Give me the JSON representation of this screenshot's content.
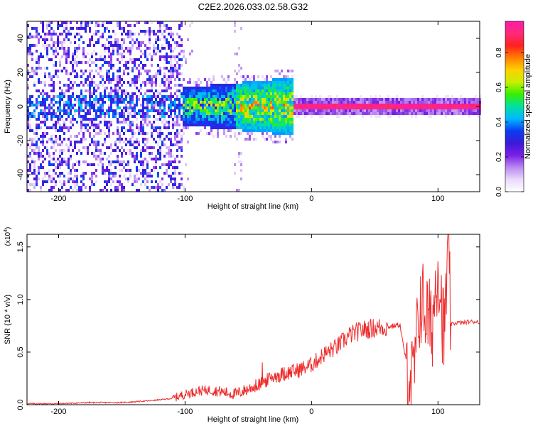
{
  "title": "C2E2.2026.033.02.58.G32",
  "chart_data": [
    {
      "type": "heatmap",
      "xlabel": "Height of straight line (km)",
      "ylabel": "Frequency (Hz)",
      "xlim": [
        -225,
        133
      ],
      "ylim": [
        -50,
        50
      ],
      "xticks": [
        -200,
        -100,
        0,
        100
      ],
      "yticks": [
        -40,
        -20,
        0,
        20,
        40
      ],
      "colorbar": {
        "label": "Normalized spectral amplitude",
        "range": [
          0.0,
          0.98
        ],
        "ticks": [
          0.0,
          0.2,
          0.4,
          0.6,
          0.8
        ],
        "tick_labels": [
          "0.0",
          "0.2",
          "0.4",
          "0.6",
          "0.8"
        ],
        "colormap": [
          "#ffffff",
          "#e9d9fb",
          "#b98af0",
          "#7a1fe6",
          "#3a1ad8",
          "#0b3cf2",
          "#00b8ff",
          "#00e0a0",
          "#35f000",
          "#c8ef00",
          "#ffd000",
          "#ff8000",
          "#ff2020",
          "#ff2a7a",
          "#ff1aa8"
        ]
      },
      "description_bands": [
        {
          "x_range": [
            -225,
            -102
          ],
          "kind": "broadband noise",
          "level": 0.3
        },
        {
          "x_range": [
            -102,
            -15
          ],
          "kind": "narrowing signal near 0 Hz",
          "level": 0.55
        },
        {
          "x_range": [
            -15,
            133
          ],
          "kind": "narrow line at 0 Hz",
          "level": 0.95
        }
      ]
    },
    {
      "type": "line",
      "xlabel": "Height of straight line (km)",
      "ylabel": "SNR (10 * v/v)",
      "multiplier": "(x10^4)",
      "xlim": [
        -225,
        133
      ],
      "ylim": [
        0,
        1.62
      ],
      "xticks": [
        -200,
        -100,
        0,
        100
      ],
      "yticks": [
        0.0,
        0.5,
        1.0,
        1.5
      ],
      "ytick_labels": [
        "0.0",
        "0.5",
        "1.0",
        "1.5"
      ],
      "color": "#ee2b2b",
      "series": [
        {
          "x": [
            -225,
            -200,
            -175,
            -150,
            -125,
            -110,
            -100,
            -90,
            -80,
            -70,
            -60,
            -50,
            -40,
            -30,
            -20,
            -10,
            0,
            10,
            20,
            30,
            40,
            50,
            60,
            65,
            70,
            72,
            75,
            78,
            80,
            83,
            86,
            90,
            95,
            100,
            105,
            108,
            110,
            115,
            120,
            125,
            133
          ],
          "y": [
            0.01,
            0.01,
            0.02,
            0.02,
            0.04,
            0.06,
            0.1,
            0.13,
            0.14,
            0.12,
            0.1,
            0.15,
            0.2,
            0.27,
            0.3,
            0.33,
            0.38,
            0.48,
            0.55,
            0.66,
            0.71,
            0.73,
            0.74,
            0.75,
            0.76,
            0.6,
            0.4,
            0.3,
            0.2,
            0.55,
            1.0,
            0.9,
            0.7,
            1.4,
            0.6,
            1.6,
            0.76,
            0.78,
            0.78,
            0.79,
            0.79
          ]
        }
      ]
    }
  ]
}
